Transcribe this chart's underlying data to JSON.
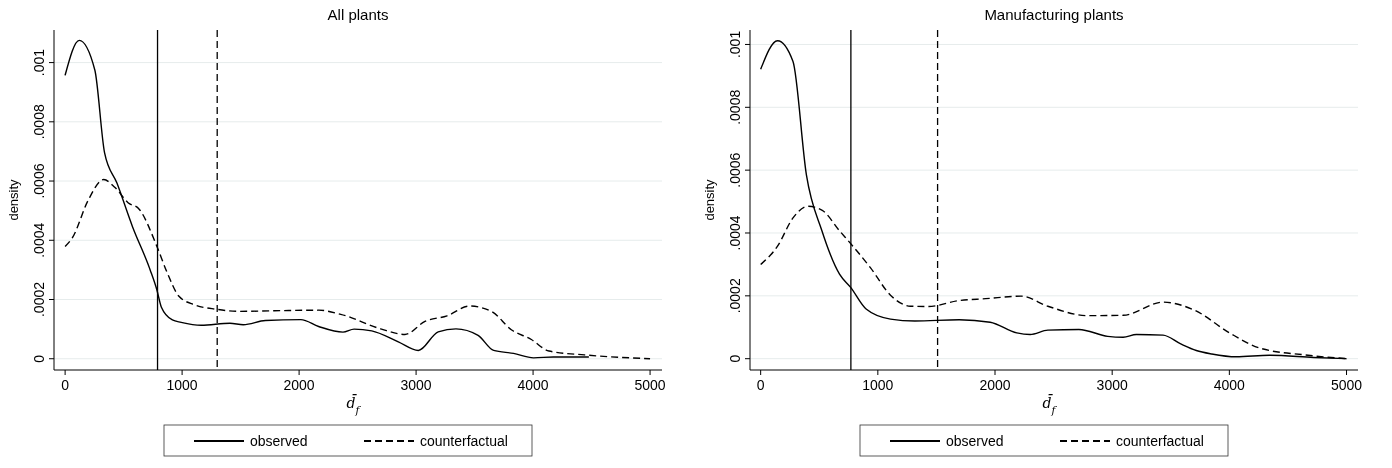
{
  "chart_data": [
    {
      "type": "line",
      "title": "All plants",
      "xlabel": "d̄$_{f}$",
      "ylabel": "density",
      "xlim": [
        -95,
        5102
      ],
      "ylim": [
        -3.8e-05,
        0.00111
      ],
      "xticks": [
        0,
        1000,
        2000,
        3000,
        4000,
        5000
      ],
      "yticks": [
        0,
        {
          "value": 0.0002,
          "label": ".0002"
        },
        {
          "value": 0.0004,
          "label": ".0004"
        },
        {
          "value": 0.0006,
          "label": ".0006"
        },
        {
          "value": 0.0008,
          "label": ".0008"
        },
        {
          "value": 0.001,
          "label": ".001"
        }
      ],
      "grid": "y",
      "legend": "bottom",
      "ref_lines": [
        {
          "axis": "x",
          "value": 790,
          "line_style": "solid",
          "color": "#000000"
        },
        {
          "axis": "x",
          "value": 1300,
          "line_style": "dashed",
          "color": "#000000"
        }
      ],
      "series": [
        {
          "name": "observed",
          "color": "#000000",
          "line_style": "solid",
          "x": [
            0,
            121,
            254,
            337,
            443,
            576,
            727,
            784,
            822,
            917,
            992,
            1163,
            1409,
            1523,
            1712,
            2015,
            2167,
            2375,
            2470,
            2621,
            2848,
            3019,
            3189,
            3341,
            3530,
            3663,
            3833,
            4004,
            4174,
            4477
          ],
          "values": [
            0.000957,
            0.001075,
            0.000975,
            0.000696,
            0.000593,
            0.000446,
            0.0003,
            0.000233,
            0.000175,
            0.000131,
            0.000123,
            0.000113,
            0.00012,
            0.000115,
            0.000129,
            0.000132,
            0.000109,
            9e-05,
            0.0001,
            9.4e-05,
            5.7e-05,
            2.8e-05,
            9.1e-05,
            0.000101,
            7.9e-05,
            2.8e-05,
            1.8e-05,
            3e-06,
            6e-06,
            6e-06
          ]
        },
        {
          "name": "counterfactual",
          "color": "#000000",
          "line_style": "dashed",
          "x": [
            0,
            64,
            197,
            330,
            424,
            538,
            633,
            784,
            871,
            973,
            1106,
            1295,
            1485,
            1788,
            2167,
            2356,
            2697,
            2905,
            3076,
            3265,
            3455,
            3644,
            3814,
            3985,
            4136,
            4439,
            5000
          ],
          "values": [
            0.000379,
            0.00041,
            0.000535,
            0.000605,
            0.000579,
            0.000527,
            0.000505,
            0.00038,
            0.000292,
            0.000211,
            0.000182,
            0.000167,
            0.00016,
            0.000162,
            0.000164,
            0.00015,
            0.000101,
            8.2e-05,
            0.000126,
            0.000145,
            0.000178,
            0.00016,
            9.8e-05,
            6.5e-05,
            2.6e-05,
            1.3e-05,
            0
          ]
        }
      ]
    },
    {
      "type": "line",
      "title": "Manufacturing plants",
      "xlabel": "d̄$_{f}$",
      "ylabel": "density",
      "xlim": [
        -91,
        5098
      ],
      "ylim": [
        -3.6e-05,
        0.001046
      ],
      "xticks": [
        0,
        1000,
        2000,
        3000,
        4000,
        5000
      ],
      "yticks": [
        0,
        {
          "value": 0.0002,
          "label": ".0002"
        },
        {
          "value": 0.0004,
          "label": ".0004"
        },
        {
          "value": 0.0006,
          "label": ".0006"
        },
        {
          "value": 0.0008,
          "label": ".0008"
        },
        {
          "value": 0.001,
          "label": ".001"
        }
      ],
      "grid": "y",
      "legend": "bottom",
      "ref_lines": [
        {
          "axis": "x",
          "value": 770,
          "line_style": "solid",
          "color": "#000000"
        },
        {
          "axis": "x",
          "value": 1510,
          "line_style": "dashed",
          "color": "#000000"
        }
      ],
      "series": [
        {
          "name": "observed",
          "color": "#000000",
          "line_style": "solid",
          "x": [
            0,
            144,
            276,
            390,
            522,
            673,
            768,
            900,
            1108,
            1316,
            1694,
            1959,
            2186,
            2300,
            2451,
            2716,
            2962,
            3094,
            3207,
            3434,
            3585,
            3718,
            3850,
            4058,
            4342,
            4720,
            5000
          ],
          "values": [
            0.000921,
            0.001012,
            0.000946,
            0.000586,
            0.000408,
            0.000269,
            0.000227,
            0.000158,
            0.000126,
            0.00012,
            0.000124,
            0.000116,
            8.2e-05,
            7.7e-05,
            9.1e-05,
            9.3e-05,
            7.1e-05,
            6.8e-05,
            7.7e-05,
            7.5e-05,
            4.7e-05,
            2.6e-05,
            1.5e-05,
            6e-06,
            1.1e-05,
            4e-06,
            0
          ]
        },
        {
          "name": "counterfactual",
          "color": "#000000",
          "line_style": "dashed",
          "x": [
            0,
            144,
            276,
            401,
            522,
            673,
            787,
            938,
            1108,
            1278,
            1430,
            1694,
            1921,
            2224,
            2451,
            2791,
            3094,
            3434,
            3699,
            4002,
            4266,
            4645,
            5000
          ],
          "values": [
            0.0003,
            0.000358,
            0.000448,
            0.000485,
            0.000473,
            0.000407,
            0.000358,
            0.000289,
            0.000202,
            0.000167,
            0.000166,
            0.000185,
            0.000191,
            0.000199,
            0.000167,
            0.000137,
            0.000138,
            0.00018,
            0.000155,
            8.2e-05,
            3.3e-05,
            1.2e-05,
            0
          ]
        }
      ]
    }
  ]
}
